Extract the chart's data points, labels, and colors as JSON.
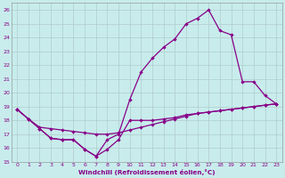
{
  "xlabel": "Windchill (Refroidissement éolien,°C)",
  "bg_color": "#c8ecec",
  "grid_color": "#b0cccc",
  "line_color": "#880088",
  "xlim": [
    -0.5,
    23.5
  ],
  "ylim": [
    15,
    26.5
  ],
  "xticks": [
    0,
    1,
    2,
    3,
    4,
    5,
    6,
    7,
    8,
    9,
    10,
    11,
    12,
    13,
    14,
    15,
    16,
    17,
    18,
    19,
    20,
    21,
    22,
    23
  ],
  "yticks": [
    15,
    16,
    17,
    18,
    19,
    20,
    21,
    22,
    23,
    24,
    25,
    26
  ],
  "series1_x": [
    0,
    1,
    2,
    3,
    4,
    5,
    6,
    7,
    8,
    9,
    10,
    11,
    12,
    13,
    14,
    15,
    16,
    17,
    18,
    19,
    20,
    21,
    22,
    23
  ],
  "series1_y": [
    18.8,
    18.1,
    17.4,
    16.7,
    16.6,
    16.6,
    15.9,
    15.4,
    15.9,
    16.6,
    18.0,
    18.0,
    18.0,
    18.1,
    18.2,
    18.4,
    18.5,
    18.6,
    18.7,
    18.8,
    18.9,
    19.0,
    19.1,
    19.2
  ],
  "series2_x": [
    0,
    1,
    2,
    3,
    4,
    5,
    6,
    7,
    8,
    9,
    10,
    11,
    12,
    13,
    14,
    15,
    16,
    17,
    18,
    19,
    20,
    21,
    22,
    23
  ],
  "series2_y": [
    18.8,
    18.1,
    17.5,
    17.4,
    17.3,
    17.2,
    17.1,
    17.0,
    17.0,
    17.1,
    17.3,
    17.5,
    17.7,
    17.9,
    18.1,
    18.3,
    18.5,
    18.6,
    18.7,
    18.8,
    18.9,
    19.0,
    19.1,
    19.2
  ],
  "series3_x": [
    0,
    1,
    2,
    3,
    4,
    5,
    6,
    7,
    8,
    9,
    10,
    11,
    12,
    13,
    14,
    15,
    16,
    17,
    18,
    19,
    20,
    21,
    22,
    23
  ],
  "series3_y": [
    18.8,
    18.1,
    17.4,
    16.7,
    16.6,
    16.6,
    15.9,
    15.4,
    16.6,
    17.0,
    19.5,
    21.5,
    22.5,
    23.3,
    23.9,
    25.0,
    25.4,
    26.0,
    24.5,
    24.2,
    20.8,
    20.8,
    19.8,
    19.2
  ]
}
